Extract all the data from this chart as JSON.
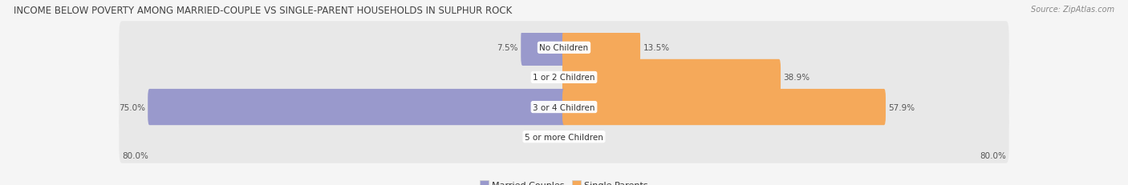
{
  "title": "INCOME BELOW POVERTY AMONG MARRIED-COUPLE VS SINGLE-PARENT HOUSEHOLDS IN SULPHUR ROCK",
  "source": "Source: ZipAtlas.com",
  "categories": [
    "No Children",
    "1 or 2 Children",
    "3 or 4 Children",
    "5 or more Children"
  ],
  "married_values": [
    7.5,
    0.0,
    75.0,
    0.0
  ],
  "single_values": [
    13.5,
    38.9,
    57.9,
    0.0
  ],
  "married_color": "#9999cc",
  "single_color": "#f5a95a",
  "married_label": "Married Couples",
  "single_label": "Single Parents",
  "max_val": 80.0,
  "x_left_label": "80.0%",
  "x_right_label": "80.0%",
  "bar_height": 0.62,
  "row_bg_color": "#e8e8e8",
  "figure_bg_color": "#f5f5f5",
  "title_fontsize": 8.5,
  "source_fontsize": 7.0,
  "value_fontsize": 7.5,
  "category_fontsize": 7.5,
  "legend_fontsize": 8.0,
  "title_color": "#444444",
  "source_color": "#888888",
  "value_color": "#555555",
  "category_color": "#333333",
  "legend_color": "#333333"
}
